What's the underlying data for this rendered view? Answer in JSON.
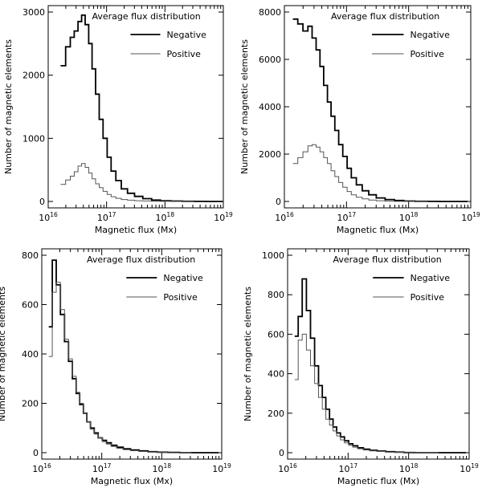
{
  "figure": {
    "xlabel": "Magnetic flux (Mx)",
    "ylabel": "Number of magnetic elements",
    "legend_title": "Average flux distribution",
    "series_names": [
      "Negative",
      "Positive"
    ],
    "colors": {
      "negative": "#000000",
      "positive": "#555555",
      "axes": "#000000",
      "background": "#ffffff"
    }
  },
  "chart_data": [
    {
      "type": "line",
      "panel": "top-left",
      "title": "Average flux distribution",
      "xscale": "log",
      "xlim": [
        1e+16,
        1e+19
      ],
      "ylim": [
        0,
        3000
      ],
      "yticks": [
        0,
        1000,
        2000,
        3000
      ],
      "xtick_labels": [
        "10^16",
        "10^17",
        "10^18",
        "10^19"
      ],
      "xlabel": "Magnetic flux (Mx)",
      "ylabel": "Number of magnetic elements",
      "legend_position": "top-right",
      "series": [
        {
          "name": "Negative",
          "x": [
            1.8e+16,
            2.2e+16,
            2.6e+16,
            3e+16,
            3.5e+16,
            4e+16,
            4.6e+16,
            5.3e+16,
            6e+16,
            7e+16,
            8e+16,
            9.5e+16,
            1.1e+17,
            1.3e+17,
            1.6e+17,
            2e+17,
            2.6e+17,
            3.5e+17,
            5e+17,
            7e+17,
            1e+18,
            1.6e+18,
            2.5e+18,
            4e+18,
            6.5e+18,
            8.5e+18
          ],
          "y": [
            2150,
            2450,
            2600,
            2700,
            2850,
            2950,
            2800,
            2500,
            2100,
            1700,
            1300,
            1000,
            700,
            480,
            330,
            200,
            130,
            80,
            45,
            22,
            12,
            6,
            3,
            1,
            0,
            0
          ]
        },
        {
          "name": "Positive",
          "x": [
            1.8e+16,
            2.2e+16,
            2.6e+16,
            3e+16,
            3.5e+16,
            4e+16,
            4.6e+16,
            5.3e+16,
            6e+16,
            7e+16,
            8e+16,
            9.5e+16,
            1.1e+17,
            1.3e+17,
            1.6e+17,
            2e+17,
            2.6e+17,
            3.5e+17,
            5e+17,
            7e+17,
            1e+18,
            1.6e+18,
            2.5e+18
          ],
          "y": [
            270,
            340,
            400,
            470,
            560,
            600,
            540,
            450,
            360,
            280,
            220,
            160,
            110,
            75,
            50,
            30,
            20,
            12,
            7,
            3,
            1,
            0,
            0
          ]
        }
      ]
    },
    {
      "type": "line",
      "panel": "top-right",
      "title": "Average flux distribution",
      "xscale": "log",
      "xlim": [
        1e+16,
        1e+19
      ],
      "ylim": [
        0,
        8000
      ],
      "yticks": [
        0,
        2000,
        4000,
        6000,
        8000
      ],
      "xtick_labels": [
        "10^16",
        "10^17",
        "10^18",
        "10^19"
      ],
      "xlabel": "Magnetic flux (Mx)",
      "ylabel": "Number of magnetic elements",
      "legend_position": "top-right",
      "series": [
        {
          "name": "Negative",
          "x": [
            1.5e+16,
            1.8e+16,
            2.2e+16,
            2.6e+16,
            3e+16,
            3.5e+16,
            4e+16,
            4.6e+16,
            5.3e+16,
            6e+16,
            7e+16,
            8e+16,
            9.5e+16,
            1.1e+17,
            1.3e+17,
            1.6e+17,
            2e+17,
            2.6e+17,
            3.5e+17,
            5e+17,
            7e+17,
            1e+18,
            1.6e+18,
            2.5e+18,
            4e+18,
            6.5e+18,
            8e+18
          ],
          "y": [
            7700,
            7500,
            7200,
            7400,
            6900,
            6400,
            5700,
            4900,
            4200,
            3600,
            3000,
            2400,
            1900,
            1400,
            1000,
            700,
            450,
            280,
            150,
            80,
            40,
            18,
            8,
            3,
            1,
            0,
            0
          ]
        },
        {
          "name": "Positive",
          "x": [
            1.5e+16,
            1.8e+16,
            2.2e+16,
            2.6e+16,
            3e+16,
            3.5e+16,
            4e+16,
            4.6e+16,
            5.3e+16,
            6e+16,
            7e+16,
            8e+16,
            9.5e+16,
            1.1e+17,
            1.3e+17,
            1.6e+17,
            2e+17,
            2.6e+17,
            3.5e+17,
            5e+17,
            7e+17,
            1e+18,
            1.6e+18
          ],
          "y": [
            1600,
            1850,
            2100,
            2350,
            2400,
            2300,
            2100,
            1850,
            1600,
            1300,
            1050,
            800,
            600,
            420,
            280,
            180,
            110,
            60,
            30,
            12,
            4,
            1,
            0
          ]
        }
      ]
    },
    {
      "type": "line",
      "panel": "bottom-left",
      "title": "Average flux distribution",
      "xscale": "log",
      "xlim": [
        1e+16,
        1e+19
      ],
      "ylim": [
        0,
        800
      ],
      "yticks": [
        0,
        200,
        400,
        600,
        800
      ],
      "xtick_labels": [
        "10^16",
        "10^17",
        "10^18",
        "10^19"
      ],
      "xlabel": "Magnetic flux (Mx)",
      "ylabel": "Number of magnetic elements",
      "legend_position": "top-right",
      "series": [
        {
          "name": "Negative",
          "x": [
            1.4e+16,
            1.6e+16,
            1.9e+16,
            2.2e+16,
            2.6e+16,
            3e+16,
            3.5e+16,
            4e+16,
            4.6e+16,
            5.3e+16,
            6e+16,
            7e+16,
            8e+16,
            9.5e+16,
            1.1e+17,
            1.3e+17,
            1.6e+17,
            2e+17,
            2.6e+17,
            3.5e+17,
            5e+17,
            7e+17,
            1e+18,
            1.6e+18,
            2.5e+18,
            4e+18,
            6.5e+18,
            8e+18
          ],
          "y": [
            510,
            780,
            680,
            560,
            450,
            370,
            300,
            240,
            195,
            160,
            125,
            100,
            80,
            60,
            50,
            40,
            30,
            22,
            16,
            11,
            7,
            4,
            2,
            1,
            0,
            0,
            0,
            0
          ]
        },
        {
          "name": "Positive",
          "x": [
            1.4e+16,
            1.6e+16,
            1.9e+16,
            2.2e+16,
            2.6e+16,
            3e+16,
            3.5e+16,
            4e+16,
            4.6e+16,
            5.3e+16,
            6e+16,
            7e+16,
            8e+16,
            9.5e+16,
            1.1e+17,
            1.3e+17,
            1.6e+17,
            2e+17,
            2.6e+17,
            3.5e+17,
            5e+17,
            7e+17,
            1e+18,
            1.6e+18,
            2.5e+18
          ],
          "y": [
            390,
            650,
            690,
            580,
            460,
            380,
            310,
            245,
            200,
            160,
            125,
            95,
            75,
            60,
            45,
            35,
            25,
            18,
            12,
            8,
            5,
            3,
            1,
            0,
            0
          ]
        }
      ]
    },
    {
      "type": "line",
      "panel": "bottom-right",
      "title": "Average flux distribution",
      "xscale": "log",
      "xlim": [
        1e+16,
        1e+19
      ],
      "ylim": [
        0,
        1000
      ],
      "yticks": [
        0,
        200,
        400,
        600,
        800,
        1000
      ],
      "xtick_labels": [
        "10^16",
        "10^17",
        "10^18",
        "10^19"
      ],
      "xlabel": "Magnetic flux (Mx)",
      "ylabel": "Number of magnetic elements",
      "legend_position": "top-right",
      "series": [
        {
          "name": "Negative",
          "x": [
            1.4e+16,
            1.6e+16,
            1.9e+16,
            2.2e+16,
            2.6e+16,
            3e+16,
            3.5e+16,
            4e+16,
            4.6e+16,
            5.3e+16,
            6e+16,
            7e+16,
            8e+16,
            9.5e+16,
            1.1e+17,
            1.3e+17,
            1.6e+17,
            2e+17,
            2.6e+17,
            3.5e+17,
            5e+17,
            7e+17,
            1e+18,
            1.6e+18,
            2.5e+18,
            4e+18,
            6.5e+18,
            8e+18
          ],
          "y": [
            590,
            690,
            880,
            720,
            580,
            440,
            340,
            280,
            220,
            170,
            130,
            100,
            80,
            60,
            45,
            35,
            25,
            18,
            12,
            8,
            5,
            3,
            1,
            0,
            0,
            0,
            0,
            0
          ]
        },
        {
          "name": "Positive",
          "x": [
            1.4e+16,
            1.6e+16,
            1.9e+16,
            2.2e+16,
            2.6e+16,
            3e+16,
            3.5e+16,
            4e+16,
            4.6e+16,
            5.3e+16,
            6e+16,
            7e+16,
            8e+16,
            9.5e+16,
            1.1e+17,
            1.3e+17,
            1.6e+17,
            2e+17,
            2.6e+17,
            3.5e+17,
            5e+17,
            7e+17,
            1e+18,
            1.6e+18,
            2.5e+18
          ],
          "y": [
            370,
            570,
            600,
            520,
            440,
            350,
            280,
            220,
            170,
            140,
            110,
            85,
            65,
            50,
            38,
            28,
            20,
            14,
            9,
            6,
            3,
            2,
            1,
            0,
            0
          ]
        }
      ]
    }
  ]
}
